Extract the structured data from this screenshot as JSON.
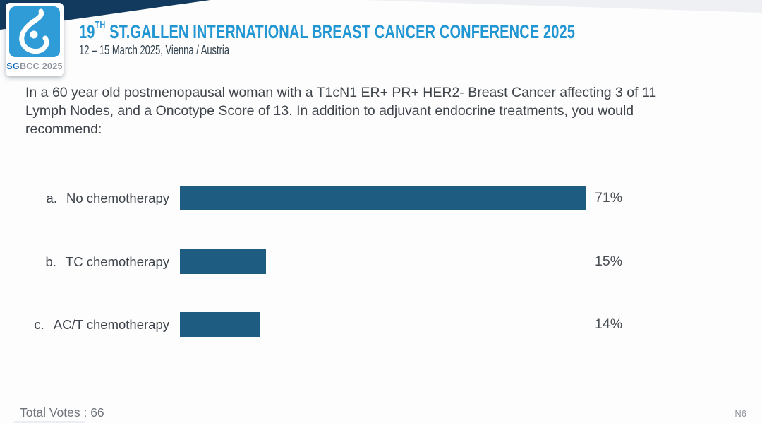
{
  "header": {
    "banner_color": "#123a5e",
    "logo": {
      "icon": "sgbcc-breast-logo",
      "label_bold": "SG",
      "label_rest": "BCC 2025"
    },
    "title_number": "19",
    "title_ordinal": "TH",
    "title_rest": " ST.GALLEN INTERNATIONAL BREAST CANCER CONFERENCE 2025",
    "title_color": "#2196d3",
    "subtitle": "12 – 15 March 2025, Vienna / Austria"
  },
  "question": "In a 60 year old postmenopausal woman with a T1cN1 ER+ PR+ HER2- Breast Cancer affecting 3 of 11 Lymph Nodes, and a Oncotype Score of 13. In addition to adjuvant endocrine treatments, you would recommend:",
  "chart_data": {
    "type": "bar",
    "orientation": "horizontal",
    "title": "",
    "categories": [
      "No chemotherapy",
      "TC chemotherapy",
      "AC/T chemotherapy"
    ],
    "option_letters": [
      "a.",
      "b.",
      "c."
    ],
    "values": [
      71,
      15,
      14
    ],
    "value_labels": [
      "71%",
      "15%",
      "14%"
    ],
    "xlim": [
      0,
      100
    ],
    "bar_color": "#1e5c82",
    "axis_color": "#c8cbcf",
    "grid": false,
    "legend": false
  },
  "footer": {
    "total_votes_label": "Total Votes : 66",
    "slide_code": "N6"
  }
}
